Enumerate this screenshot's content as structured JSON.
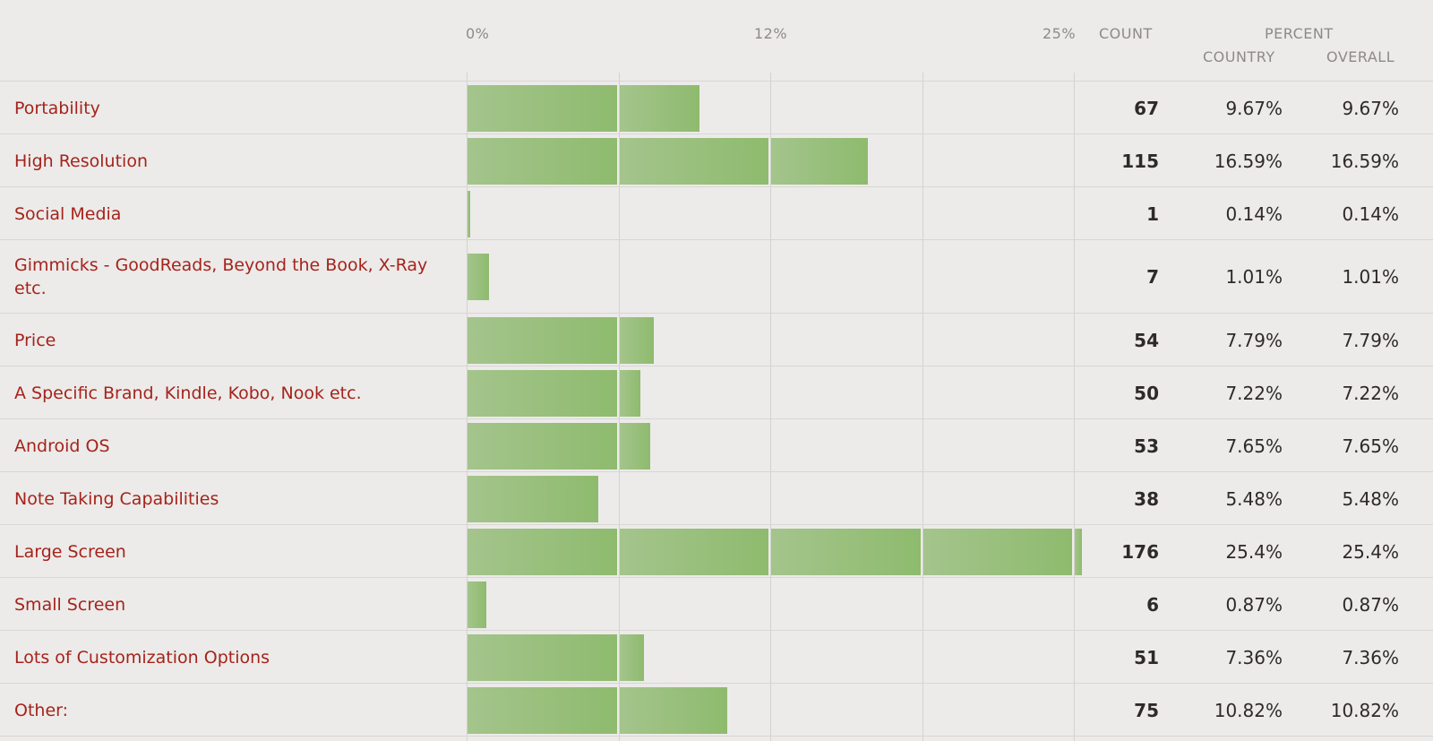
{
  "header": {
    "ticks": [
      "0%",
      "12%",
      "25%"
    ],
    "count_label": "COUNT",
    "percent_label": "PERCENT",
    "country_label": "COUNTRY",
    "overall_label": "OVERALL"
  },
  "colors": {
    "bar": "#8ebb6e",
    "label": "#a5231c"
  },
  "chart_data": {
    "type": "bar",
    "orientation": "horizontal",
    "xlim": [
      0,
      25
    ],
    "x_ticks": [
      "0%",
      "12%",
      "25%"
    ],
    "grid": true,
    "categories": [
      "Portability",
      "High Resolution",
      "Social Media",
      "Gimmicks - GoodReads, Beyond the Book, X-Ray etc.",
      "Price",
      "A Specific Brand, Kindle, Kobo, Nook etc.",
      "Android OS",
      "Note Taking Capabilities",
      "Large Screen",
      "Small Screen",
      "Lots of Customization Options",
      "Other:"
    ],
    "rows": [
      {
        "label": "Portability",
        "count": "67",
        "country": "9.67%",
        "overall": "9.67%",
        "value": 9.67
      },
      {
        "label": "High Resolution",
        "count": "115",
        "country": "16.59%",
        "overall": "16.59%",
        "value": 16.59
      },
      {
        "label": "Social Media",
        "count": "1",
        "country": "0.14%",
        "overall": "0.14%",
        "value": 0.14
      },
      {
        "label": "Gimmicks - GoodReads, Beyond the Book, X-Ray etc.",
        "count": "7",
        "country": "1.01%",
        "overall": "1.01%",
        "value": 1.01
      },
      {
        "label": "Price",
        "count": "54",
        "country": "7.79%",
        "overall": "7.79%",
        "value": 7.79
      },
      {
        "label": "A Specific Brand, Kindle, Kobo, Nook etc.",
        "count": "50",
        "country": "7.22%",
        "overall": "7.22%",
        "value": 7.22
      },
      {
        "label": "Android OS",
        "count": "53",
        "country": "7.65%",
        "overall": "7.65%",
        "value": 7.65
      },
      {
        "label": "Note Taking Capabilities",
        "count": "38",
        "country": "5.48%",
        "overall": "5.48%",
        "value": 5.48
      },
      {
        "label": "Large Screen",
        "count": "176",
        "country": "25.4%",
        "overall": "25.4%",
        "value": 25.4
      },
      {
        "label": "Small Screen",
        "count": "6",
        "country": "0.87%",
        "overall": "0.87%",
        "value": 0.87
      },
      {
        "label": "Lots of Customization Options",
        "count": "51",
        "country": "7.36%",
        "overall": "7.36%",
        "value": 7.36
      },
      {
        "label": "Other:",
        "count": "75",
        "country": "10.82%",
        "overall": "10.82%",
        "value": 10.82
      }
    ]
  }
}
